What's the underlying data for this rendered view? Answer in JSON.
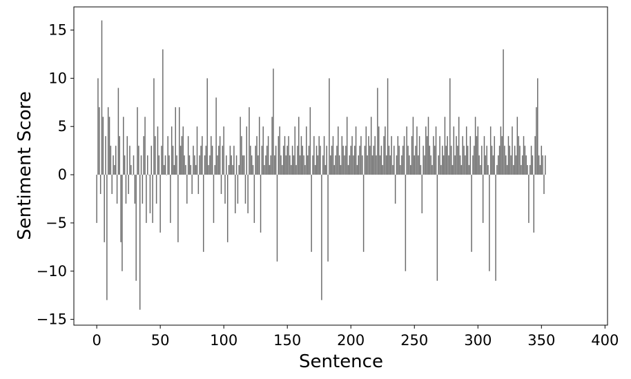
{
  "chart_data": {
    "type": "bar",
    "title": "",
    "xlabel": "Sentence",
    "ylabel": "Sentiment Score",
    "xlim": [
      -18,
      402
    ],
    "ylim": [
      -15.6,
      17.4
    ],
    "grid": false,
    "legend": "none",
    "bar_color": "#696969",
    "x_ticks": [
      0,
      50,
      100,
      150,
      200,
      250,
      300,
      350,
      400
    ],
    "x_tick_labels": [
      "0",
      "50",
      "100",
      "150",
      "200",
      "250",
      "300",
      "350",
      "400"
    ],
    "y_ticks": [
      -15,
      -10,
      -5,
      0,
      5,
      10,
      15
    ],
    "y_tick_labels": [
      "−15",
      "−10",
      "−5",
      "0",
      "5",
      "10",
      "15"
    ],
    "x_start": 0,
    "values": [
      -5,
      10,
      7,
      -2,
      16,
      6,
      -7,
      4,
      -13,
      7,
      6,
      3,
      -2,
      2,
      1,
      3,
      -3,
      9,
      4,
      -7,
      -10,
      6,
      2,
      -3,
      4,
      -2,
      3,
      1,
      0,
      2,
      -3,
      -11,
      7,
      3,
      -14,
      2,
      -3,
      4,
      6,
      -5,
      2,
      0,
      -4,
      3,
      -5,
      10,
      4,
      -3,
      5,
      2,
      -6,
      3,
      13,
      1,
      2,
      0,
      4,
      2,
      -5,
      5,
      3,
      1,
      7,
      2,
      -7,
      7,
      3,
      4,
      5,
      2,
      1,
      -3,
      4,
      2,
      1,
      -2,
      3,
      2,
      1,
      5,
      -2,
      2,
      3,
      4,
      -8,
      2,
      3,
      10,
      1,
      2,
      4,
      3,
      -5,
      1,
      8,
      2,
      3,
      4,
      -2,
      3,
      5,
      -3,
      2,
      -7,
      1,
      3,
      2,
      1,
      3,
      -4,
      2,
      -3,
      1,
      6,
      4,
      2,
      2,
      -3,
      5,
      -4,
      7,
      3,
      2,
      1,
      -5,
      3,
      4,
      2,
      6,
      -6,
      3,
      5,
      1,
      2,
      3,
      4,
      1,
      2,
      6,
      11,
      2,
      3,
      -9,
      4,
      5,
      2,
      1,
      3,
      4,
      2,
      3,
      4,
      2,
      1,
      3,
      2,
      5,
      1,
      3,
      6,
      2,
      4,
      3,
      2,
      1,
      5,
      2,
      3,
      7,
      -8,
      2,
      4,
      1,
      3,
      2,
      4,
      3,
      -13,
      2,
      4,
      1,
      3,
      -9,
      10,
      2,
      3,
      4,
      1,
      2,
      3,
      5,
      2,
      1,
      4,
      3,
      2,
      3,
      6,
      1,
      2,
      3,
      4,
      2,
      3,
      5,
      1,
      2,
      3,
      4,
      2,
      -8,
      3,
      5,
      2,
      4,
      3,
      6,
      2,
      3,
      4,
      2,
      9,
      5,
      2,
      3,
      1,
      4,
      5,
      2,
      10,
      3,
      2,
      4,
      1,
      3,
      -3,
      2,
      4,
      3,
      1,
      2,
      3,
      4,
      -10,
      5,
      3,
      2,
      1,
      4,
      6,
      2,
      3,
      5,
      2,
      4,
      1,
      -4,
      3,
      2,
      5,
      4,
      6,
      3,
      2,
      1,
      4,
      3,
      5,
      -11,
      2,
      4,
      1,
      3,
      2,
      6,
      3,
      4,
      2,
      10,
      3,
      1,
      5,
      2,
      4,
      3,
      6,
      2,
      1,
      4,
      3,
      2,
      5,
      3,
      1,
      4,
      -8,
      2,
      3,
      6,
      4,
      5,
      2,
      1,
      3,
      -5,
      4,
      2,
      3,
      1,
      -10,
      5,
      3,
      2,
      4,
      -11,
      1,
      2,
      3,
      5,
      4,
      13,
      3,
      2,
      1,
      4,
      3,
      2,
      5,
      1,
      3,
      2,
      6,
      4,
      3,
      1,
      2,
      4,
      3,
      2,
      1,
      -5,
      1,
      3,
      2,
      -6,
      4,
      7,
      10,
      2,
      1,
      3,
      2,
      -2,
      2
    ]
  }
}
